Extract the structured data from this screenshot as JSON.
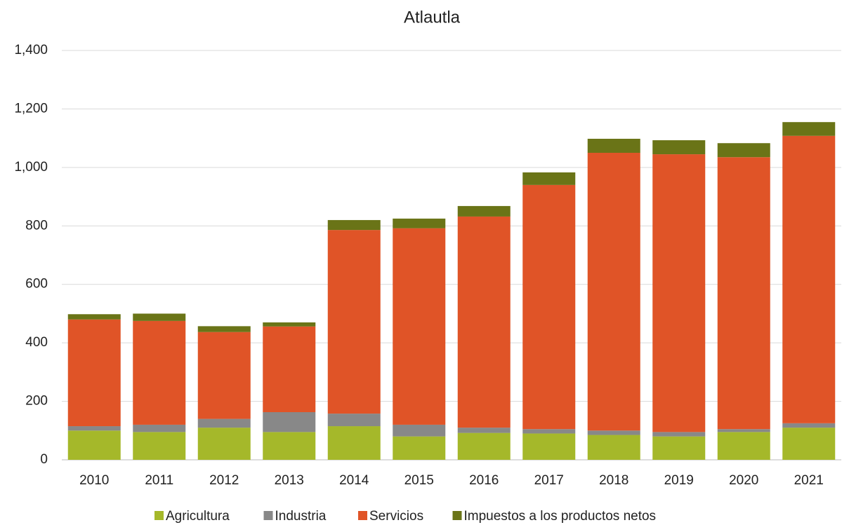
{
  "chart_data": {
    "type": "stacked_bar",
    "title": "Atlautla",
    "categories": [
      "2010",
      "2011",
      "2012",
      "2013",
      "2014",
      "2015",
      "2016",
      "2017",
      "2018",
      "2019",
      "2020",
      "2021"
    ],
    "series": [
      {
        "name": "Agricultura",
        "color": "#a5b82a",
        "values": [
          100,
          95,
          110,
          95,
          115,
          80,
          92,
          90,
          85,
          80,
          95,
          110
        ]
      },
      {
        "name": "Industria",
        "color": "#888888",
        "values": [
          15,
          25,
          30,
          68,
          43,
          40,
          18,
          15,
          15,
          15,
          10,
          15
        ]
      },
      {
        "name": "Servicios",
        "color": "#e05427",
        "values": [
          365,
          355,
          297,
          293,
          628,
          672,
          722,
          835,
          950,
          950,
          930,
          983
        ]
      },
      {
        "name": "Impuestos a los productos netos",
        "color": "#6a7417",
        "values": [
          18,
          25,
          20,
          14,
          34,
          33,
          36,
          43,
          48,
          48,
          48,
          47
        ]
      }
    ],
    "ylim": [
      0,
      1400
    ],
    "yticks": [
      0,
      200,
      400,
      600,
      800,
      {
        "value": 1000,
        "label": "1,000"
      },
      {
        "value": 1200,
        "label": "1,200"
      },
      {
        "value": 1400,
        "label": "1,400"
      }
    ],
    "grid": true,
    "legend": "bottom"
  }
}
